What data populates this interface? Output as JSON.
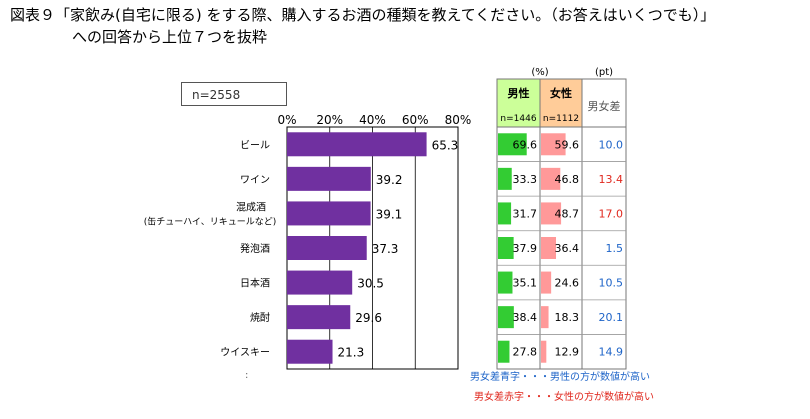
{
  "title": {
    "line1": "図表９「家飲み(自宅に限る) をする際、購入するお酒の種類を教えてください。（お答えはいくつでも）」",
    "line2": "への回答から上位７つを抜粋"
  },
  "sample_label": "n=2558",
  "chart_data": {
    "type": "bar",
    "orientation": "horizontal",
    "categories": [
      "ビール",
      "ワイン",
      "混成酒",
      "発泡酒",
      "日本酒",
      "焼酎",
      "ウイスキー"
    ],
    "category_sublabels": [
      "",
      "",
      "(缶チューハイ、リキュールなど)",
      "",
      "",
      "",
      ""
    ],
    "values": [
      65.3,
      39.2,
      39.1,
      37.3,
      30.5,
      29.6,
      21.3
    ],
    "ticks": [
      "0%",
      "20%",
      "40%",
      "60%",
      "80%"
    ],
    "xlim": [
      0,
      80
    ],
    "bar_color": "#7030a0",
    "table": {
      "unit_percent": "(%)",
      "unit_pt": "(pt)",
      "male_header": "男性",
      "female_header": "女性",
      "diff_header": "男女差",
      "male_n": "n=1446",
      "female_n": "n=1112",
      "male_values": [
        69.6,
        33.3,
        31.7,
        37.9,
        35.1,
        38.4,
        27.8
      ],
      "female_values": [
        59.6,
        46.8,
        48.7,
        36.4,
        24.6,
        18.3,
        12.9
      ],
      "diff_values": [
        "10.0",
        "13.4",
        "17.0",
        "1.5",
        "10.5",
        "20.1",
        "14.9"
      ],
      "diff_sign": [
        "male",
        "female",
        "female",
        "male",
        "male",
        "male",
        "male"
      ],
      "male_bar_color": "#33cc33",
      "female_bar_color": "#ff9999",
      "male_header_bg": "#ccff99",
      "female_header_bg": "#ffcc99",
      "blue": "#1e64c8",
      "red": "#e0281e"
    }
  },
  "legend": {
    "blue_note": "男女差青字・・・男性の方が数値が高い",
    "red_note": "男女差赤字・・・女性の方が数値が高い"
  },
  "stray_mark": ":"
}
